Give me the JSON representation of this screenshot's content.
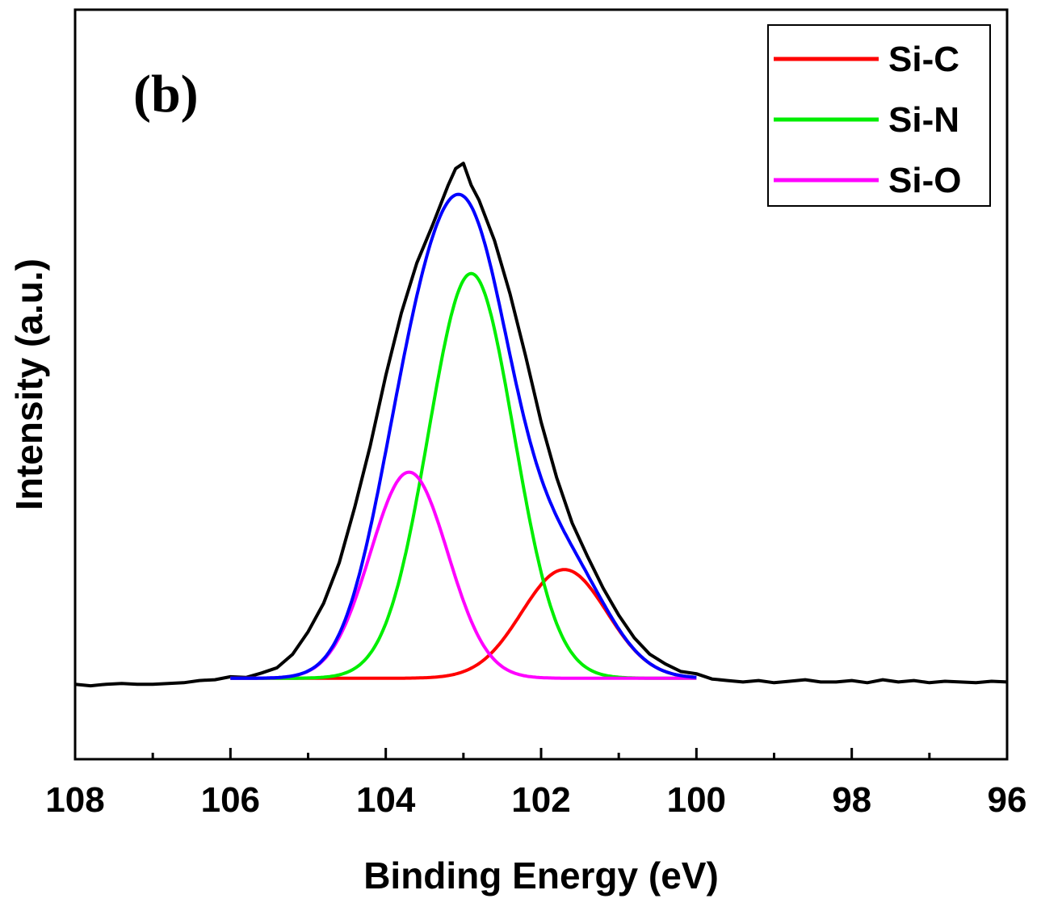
{
  "chart_data": {
    "type": "line",
    "panel_label": "(b)",
    "xlabel": "Binding Energy (eV)",
    "ylabel": "Intensity (a.u.)",
    "x_reversed": true,
    "xlim": [
      108,
      96
    ],
    "ylim": [
      -100,
      900
    ],
    "x_ticks": [
      108,
      106,
      104,
      102,
      100,
      98,
      96
    ],
    "x_minor_ticks": [
      107,
      105,
      103,
      101,
      99,
      97
    ],
    "legend_position": "top-right",
    "legend": [
      {
        "name": "Si-C",
        "color": "#ff0000"
      },
      {
        "name": "Si-N",
        "color": "#00ee00"
      },
      {
        "name": "Si-O",
        "color": "#ff00ff"
      }
    ],
    "raw_data": {
      "color": "#000000",
      "points": [
        [
          108.0,
          0
        ],
        [
          107.8,
          -2
        ],
        [
          107.6,
          0
        ],
        [
          107.4,
          1
        ],
        [
          107.2,
          0
        ],
        [
          107.0,
          0
        ],
        [
          106.8,
          1
        ],
        [
          106.6,
          2
        ],
        [
          106.4,
          5
        ],
        [
          106.2,
          6
        ],
        [
          106.0,
          10
        ],
        [
          105.8,
          9
        ],
        [
          105.6,
          15
        ],
        [
          105.4,
          22
        ],
        [
          105.2,
          40
        ],
        [
          105.0,
          70
        ],
        [
          104.8,
          108
        ],
        [
          104.6,
          162
        ],
        [
          104.4,
          236
        ],
        [
          104.2,
          318
        ],
        [
          104.0,
          412
        ],
        [
          103.8,
          495
        ],
        [
          103.6,
          562
        ],
        [
          103.4,
          612
        ],
        [
          103.2,
          665
        ],
        [
          103.1,
          688
        ],
        [
          103.0,
          695
        ],
        [
          102.9,
          666
        ],
        [
          102.8,
          646
        ],
        [
          102.6,
          592
        ],
        [
          102.4,
          521
        ],
        [
          102.2,
          438
        ],
        [
          102.0,
          350
        ],
        [
          101.8,
          276
        ],
        [
          101.6,
          215
        ],
        [
          101.4,
          170
        ],
        [
          101.2,
          128
        ],
        [
          101.0,
          92
        ],
        [
          100.8,
          62
        ],
        [
          100.6,
          40
        ],
        [
          100.4,
          27
        ],
        [
          100.2,
          17
        ],
        [
          100.0,
          14
        ],
        [
          99.8,
          7
        ],
        [
          99.6,
          5
        ],
        [
          99.4,
          3
        ],
        [
          99.2,
          5
        ],
        [
          99.0,
          2
        ],
        [
          98.8,
          4
        ],
        [
          98.6,
          6
        ],
        [
          98.4,
          3
        ],
        [
          98.2,
          3
        ],
        [
          98.0,
          5
        ],
        [
          97.8,
          2
        ],
        [
          97.6,
          6
        ],
        [
          97.4,
          3
        ],
        [
          97.2,
          5
        ],
        [
          97.0,
          2
        ],
        [
          96.8,
          4
        ],
        [
          96.6,
          3
        ],
        [
          96.4,
          2
        ],
        [
          96.2,
          4
        ],
        [
          96.0,
          3
        ]
      ]
    },
    "fit_range": [
      106,
      100
    ],
    "baseline": 8,
    "envelope_color": "#0000ff",
    "components": [
      {
        "name": "Si-C",
        "color": "#ff0000",
        "center": 101.7,
        "height": 145,
        "sigma": 0.55
      },
      {
        "name": "Si-N",
        "color": "#00ee00",
        "center": 102.9,
        "height": 540,
        "sigma": 0.55
      },
      {
        "name": "Si-O",
        "color": "#ff00ff",
        "center": 103.7,
        "height": 275,
        "sigma": 0.5
      }
    ]
  }
}
